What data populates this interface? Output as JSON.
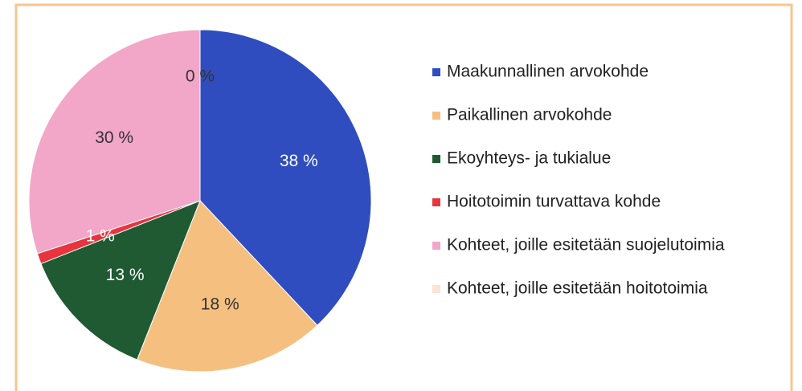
{
  "chart_data": {
    "type": "pie",
    "categories": [
      "Maakunnallinen arvokohde",
      "Paikallinen arvokohde",
      "Ekoyhteys- ja tukialue",
      "Hoitotoimin turvattava kohde",
      "Kohteet, joille esitetään suojelutoimia",
      "Kohteet, joille esitetään hoitotoimia"
    ],
    "values": [
      38,
      18,
      13,
      1,
      30,
      0
    ],
    "value_labels": [
      "38 %",
      "18 %",
      "13 %",
      "1 %",
      "30 %",
      "0 %"
    ],
    "colors": [
      "#2f4dbf",
      "#f5c07f",
      "#1f5a32",
      "#e8343f",
      "#f2a6c8",
      "#fbe3d6"
    ],
    "legend": "right"
  }
}
